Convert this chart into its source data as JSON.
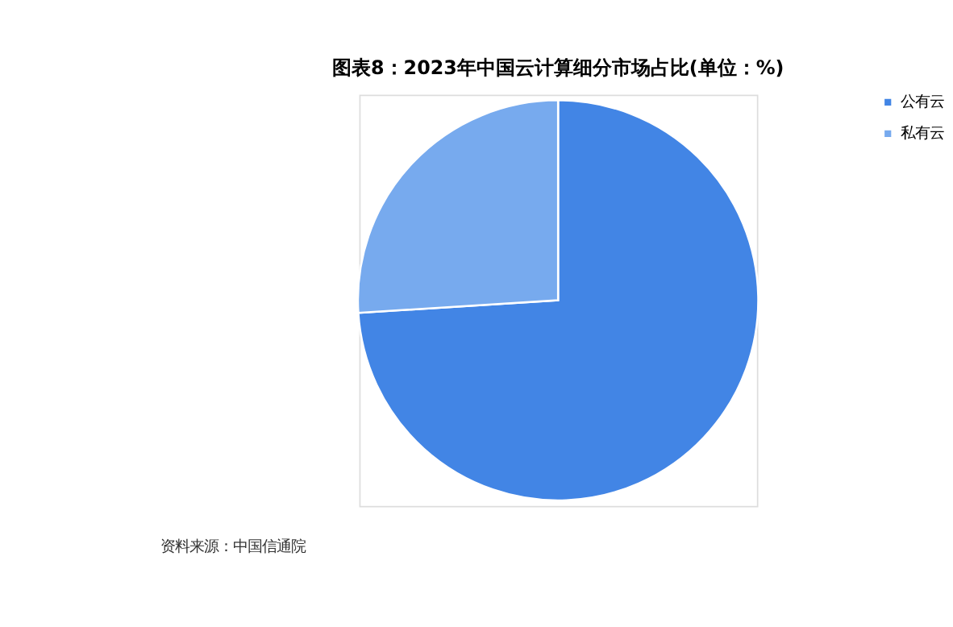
{
  "chart_data": {
    "type": "pie",
    "title": "图表8：2023年中国云计算细分市场占比(单位：%)",
    "categories": [
      "公有云",
      "私有云"
    ],
    "values": [
      74,
      26
    ],
    "colors": [
      "#4285e5",
      "#77aaee"
    ],
    "legend": "right",
    "annotations": [
      "资料来源：中国信通院"
    ]
  }
}
